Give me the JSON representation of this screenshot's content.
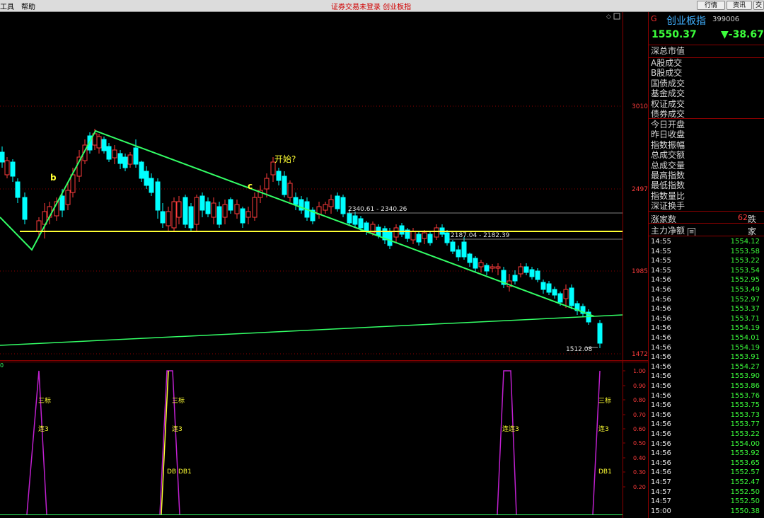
{
  "menubar": {
    "items": [
      "工具",
      "帮助"
    ],
    "title": "证券交易未登录  创业板指"
  },
  "top_buttons": [
    "行情",
    "资讯",
    "交"
  ],
  "main_chart": {
    "y_ticks": [
      "3010",
      "2497",
      "1985",
      "1472"
    ],
    "annotations": {
      "b": "b",
      "c": "c",
      "start": "开始?",
      "level1": "2340.61 - 2340.26",
      "level2": "2187.04 - 2182.39",
      "low": "1512.08"
    }
  },
  "indicator": {
    "zero": "0",
    "y_ticks": [
      "1.00",
      "0.90",
      "0.80",
      "0.70",
      "0.60",
      "0.50",
      "0.40",
      "0.30",
      "0.20"
    ],
    "labels": {
      "sanbiao": "三标",
      "lian3": "连3",
      "lianlian3": "连连3",
      "dbdb1": "DB DB1",
      "db1": "DB1"
    }
  },
  "quote": {
    "flag": "G",
    "name": "创业板指",
    "code": "399006",
    "last": "1550.37",
    "change": "▼-38.67",
    "group1": [
      "深总市值"
    ],
    "group2": [
      "A股成交",
      "B股成交",
      "国债成交",
      "基金成交",
      "权证成交",
      "债券成交"
    ],
    "group3": [
      "今日开盘",
      "昨日收盘",
      "指数振幅",
      "总成交额",
      "总成交量",
      "最高指数",
      "最低指数",
      "指数量比",
      "深证换手"
    ],
    "zhangjiashu": "涨家数",
    "zhang_value": "62",
    "die": "跌家",
    "zhuli": "主力净额"
  },
  "ticks": [
    {
      "t": "14:55",
      "p": "1554.12"
    },
    {
      "t": "14:55",
      "p": "1553.58"
    },
    {
      "t": "14:55",
      "p": "1553.22"
    },
    {
      "t": "14:55",
      "p": "1553.54"
    },
    {
      "t": "14:56",
      "p": "1552.95"
    },
    {
      "t": "14:56",
      "p": "1553.49"
    },
    {
      "t": "14:56",
      "p": "1552.97"
    },
    {
      "t": "14:56",
      "p": "1553.37"
    },
    {
      "t": "14:56",
      "p": "1553.71"
    },
    {
      "t": "14:56",
      "p": "1554.19"
    },
    {
      "t": "14:56",
      "p": "1554.01"
    },
    {
      "t": "14:56",
      "p": "1554.19"
    },
    {
      "t": "14:56",
      "p": "1553.91"
    },
    {
      "t": "14:56",
      "p": "1554.27"
    },
    {
      "t": "14:56",
      "p": "1553.90"
    },
    {
      "t": "14:56",
      "p": "1553.86"
    },
    {
      "t": "14:56",
      "p": "1553.76"
    },
    {
      "t": "14:56",
      "p": "1553.75"
    },
    {
      "t": "14:56",
      "p": "1553.73"
    },
    {
      "t": "14:56",
      "p": "1553.77"
    },
    {
      "t": "14:56",
      "p": "1553.22"
    },
    {
      "t": "14:56",
      "p": "1554.00"
    },
    {
      "t": "14:56",
      "p": "1553.92"
    },
    {
      "t": "14:56",
      "p": "1553.65"
    },
    {
      "t": "14:56",
      "p": "1552.57"
    },
    {
      "t": "14:57",
      "p": "1552.47"
    },
    {
      "t": "14:57",
      "p": "1552.50"
    },
    {
      "t": "14:57",
      "p": "1552.50"
    },
    {
      "t": "15:00",
      "p": "1550.38"
    }
  ],
  "colors": {
    "up": "#ff3c3c",
    "down": "#00ffff",
    "trend": "#33ff66",
    "support": "#ffff33",
    "indicator": "#c020d0"
  }
}
